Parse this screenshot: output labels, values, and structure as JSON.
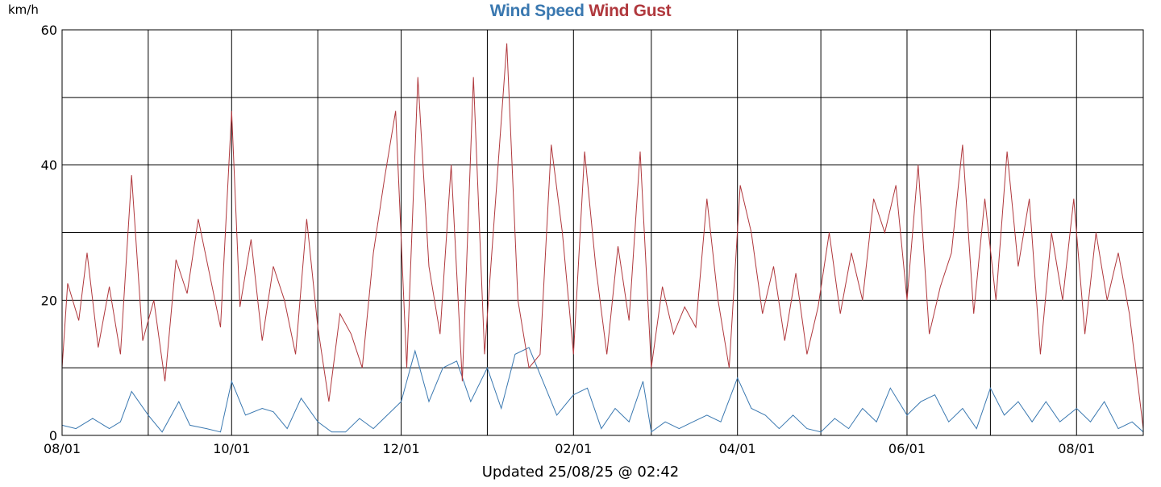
{
  "chart_data": {
    "type": "line",
    "title": "",
    "ylabel": "km/h",
    "ylim": [
      0,
      60
    ],
    "y_ticks": [
      0,
      20,
      40,
      60
    ],
    "x_tick_labels": [
      "08/01",
      "10/01",
      "12/01",
      "02/01",
      "04/01",
      "06/01",
      "08/01"
    ],
    "x_range": [
      "2024-08-01",
      "2025-08-25"
    ],
    "grid": true,
    "legend_placement": "top-center",
    "series": [
      {
        "name": "Wind Speed",
        "color": "#3a78b0",
        "x": [
          "2024-08-01",
          "2024-08-06",
          "2024-08-12",
          "2024-08-18",
          "2024-08-22",
          "2024-08-26",
          "2024-09-01",
          "2024-09-06",
          "2024-09-12",
          "2024-09-16",
          "2024-09-22",
          "2024-09-27",
          "2024-10-01",
          "2024-10-06",
          "2024-10-12",
          "2024-10-16",
          "2024-10-21",
          "2024-10-26",
          "2024-11-01",
          "2024-11-06",
          "2024-11-11",
          "2024-11-16",
          "2024-11-21",
          "2024-11-26",
          "2024-12-01",
          "2024-12-06",
          "2024-12-11",
          "2024-12-16",
          "2024-12-21",
          "2024-12-26",
          "2025-01-01",
          "2025-01-06",
          "2025-01-11",
          "2025-01-16",
          "2025-01-21",
          "2025-01-26",
          "2025-02-01",
          "2025-02-06",
          "2025-02-11",
          "2025-02-16",
          "2025-02-21",
          "2025-02-26",
          "2025-03-01",
          "2025-03-06",
          "2025-03-11",
          "2025-03-16",
          "2025-03-21",
          "2025-03-26",
          "2025-04-01",
          "2025-04-06",
          "2025-04-11",
          "2025-04-16",
          "2025-04-21",
          "2025-04-26",
          "2025-05-01",
          "2025-05-06",
          "2025-05-11",
          "2025-05-16",
          "2025-05-21",
          "2025-05-26",
          "2025-06-01",
          "2025-06-06",
          "2025-06-11",
          "2025-06-16",
          "2025-06-21",
          "2025-06-26",
          "2025-07-01",
          "2025-07-06",
          "2025-07-11",
          "2025-07-16",
          "2025-07-21",
          "2025-07-26",
          "2025-08-01",
          "2025-08-06",
          "2025-08-11",
          "2025-08-16",
          "2025-08-21",
          "2025-08-25"
        ],
        "values": [
          1.5,
          1,
          2.5,
          1,
          2,
          6.5,
          3,
          0.5,
          5,
          1.5,
          1,
          0.5,
          8,
          3,
          4,
          3.5,
          1,
          5.5,
          2,
          0.5,
          0.5,
          2.5,
          1,
          3,
          5,
          12.5,
          5,
          10,
          11,
          5,
          10,
          4,
          12,
          13,
          8,
          3,
          6,
          7,
          1,
          4,
          2,
          8,
          0.5,
          2,
          1,
          2,
          3,
          2,
          8.5,
          4,
          3,
          1,
          3,
          1,
          0.5,
          2.5,
          1,
          4,
          2,
          7,
          3,
          5,
          6,
          2,
          4,
          1,
          7,
          3,
          5,
          2,
          5,
          2,
          4,
          2,
          5,
          1,
          2,
          0.5
        ]
      },
      {
        "name": "Wind Gust",
        "color": "#b0383d",
        "x": [
          "2024-08-01",
          "2024-08-03",
          "2024-08-07",
          "2024-08-10",
          "2024-08-14",
          "2024-08-18",
          "2024-08-22",
          "2024-08-26",
          "2024-08-30",
          "2024-09-03",
          "2024-09-07",
          "2024-09-11",
          "2024-09-15",
          "2024-09-19",
          "2024-09-23",
          "2024-09-27",
          "2024-10-01",
          "2024-10-04",
          "2024-10-08",
          "2024-10-12",
          "2024-10-16",
          "2024-10-20",
          "2024-10-24",
          "2024-10-28",
          "2024-11-01",
          "2024-11-05",
          "2024-11-09",
          "2024-11-13",
          "2024-11-17",
          "2024-11-21",
          "2024-11-25",
          "2024-11-29",
          "2024-12-03",
          "2024-12-07",
          "2024-12-11",
          "2024-12-15",
          "2024-12-19",
          "2024-12-23",
          "2024-12-27",
          "2024-12-31",
          "2025-01-04",
          "2025-01-08",
          "2025-01-12",
          "2025-01-16",
          "2025-01-20",
          "2025-01-24",
          "2025-01-28",
          "2025-02-01",
          "2025-02-05",
          "2025-02-09",
          "2025-02-13",
          "2025-02-17",
          "2025-02-21",
          "2025-02-25",
          "2025-03-01",
          "2025-03-05",
          "2025-03-09",
          "2025-03-13",
          "2025-03-17",
          "2025-03-21",
          "2025-03-25",
          "2025-03-29",
          "2025-04-02",
          "2025-04-06",
          "2025-04-10",
          "2025-04-14",
          "2025-04-18",
          "2025-04-22",
          "2025-04-26",
          "2025-04-30",
          "2025-05-04",
          "2025-05-08",
          "2025-05-12",
          "2025-05-16",
          "2025-05-20",
          "2025-05-24",
          "2025-05-28",
          "2025-06-01",
          "2025-06-05",
          "2025-06-09",
          "2025-06-13",
          "2025-06-17",
          "2025-06-21",
          "2025-06-25",
          "2025-06-29",
          "2025-07-03",
          "2025-07-07",
          "2025-07-11",
          "2025-07-15",
          "2025-07-19",
          "2025-07-23",
          "2025-07-27",
          "2025-07-31",
          "2025-08-04",
          "2025-08-08",
          "2025-08-12",
          "2025-08-16",
          "2025-08-20",
          "2025-08-25"
        ],
        "values": [
          10,
          22.5,
          17,
          27,
          13,
          22,
          12,
          38.5,
          14,
          20,
          8,
          26,
          21,
          32,
          24,
          16,
          48,
          19,
          29,
          14,
          25,
          20,
          12,
          32,
          16,
          5,
          18,
          15,
          10,
          27,
          38,
          48,
          10,
          53,
          25,
          15,
          40,
          8,
          53,
          12,
          35,
          58,
          20,
          10,
          12,
          43,
          30,
          12,
          42,
          25,
          12,
          28,
          17,
          42,
          10,
          22,
          15,
          19,
          16,
          35,
          20,
          10,
          37,
          30,
          18,
          25,
          14,
          24,
          12,
          19,
          30,
          18,
          27,
          20,
          35,
          30,
          37,
          20,
          40,
          15,
          22,
          27,
          43,
          18,
          35,
          20,
          42,
          25,
          35,
          12,
          30,
          20,
          35,
          15,
          30,
          20,
          27,
          18,
          1
        ]
      }
    ]
  },
  "footer_text": "Updated 25/08/25 @ 02:42",
  "legend": [
    "Wind Speed",
    "Wind Gust"
  ],
  "unit_label": "km/h"
}
